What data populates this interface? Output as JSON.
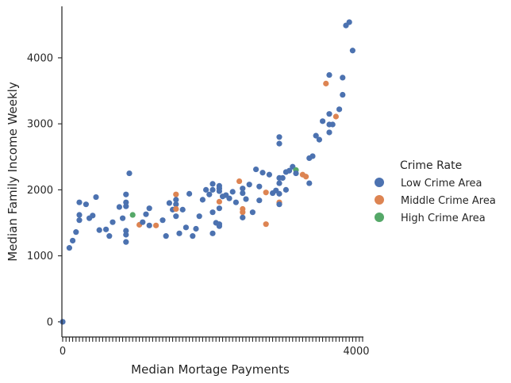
{
  "chart_data": {
    "type": "scatter",
    "ylabel": "Median Family Income Weekly",
    "xlabel": "Median Mortage Payments",
    "yticks": [
      0,
      1000,
      2000,
      3000,
      4000
    ],
    "ylim": [
      -230,
      4780
    ],
    "x_category_count": 121,
    "x_first_tick_label": "0",
    "x_last_tick_label": "4000",
    "legend": {
      "title": "Crime Rate",
      "entries": [
        {
          "key": "low",
          "label": "Low Crime Area",
          "color": "#4c72b0"
        },
        {
          "key": "middle",
          "label": "Middle Crime Area",
          "color": "#dd8452"
        },
        {
          "key": "high",
          "label": "High Crime Area",
          "color": "#55a868"
        }
      ]
    },
    "points": [
      {
        "i": 0,
        "y": 0,
        "c": "low"
      },
      {
        "i": 2,
        "y": 1120,
        "c": "low"
      },
      {
        "i": 3,
        "y": 1230,
        "c": "low"
      },
      {
        "i": 4,
        "y": 1360,
        "c": "low"
      },
      {
        "i": 5,
        "y": 1810,
        "c": "low"
      },
      {
        "i": 5,
        "y": 1620,
        "c": "low"
      },
      {
        "i": 5,
        "y": 1540,
        "c": "low"
      },
      {
        "i": 7,
        "y": 1780,
        "c": "low"
      },
      {
        "i": 8,
        "y": 1570,
        "c": "low"
      },
      {
        "i": 9,
        "y": 1610,
        "c": "low"
      },
      {
        "i": 10,
        "y": 1890,
        "c": "low"
      },
      {
        "i": 11,
        "y": 1390,
        "c": "low"
      },
      {
        "i": 13,
        "y": 1400,
        "c": "low"
      },
      {
        "i": 14,
        "y": 1300,
        "c": "low"
      },
      {
        "i": 15,
        "y": 1510,
        "c": "low"
      },
      {
        "i": 17,
        "y": 1740,
        "c": "low"
      },
      {
        "i": 18,
        "y": 1570,
        "c": "low"
      },
      {
        "i": 19,
        "y": 1930,
        "c": "low"
      },
      {
        "i": 19,
        "y": 1810,
        "c": "low"
      },
      {
        "i": 19,
        "y": 1750,
        "c": "low"
      },
      {
        "i": 19,
        "y": 1380,
        "c": "low"
      },
      {
        "i": 19,
        "y": 1320,
        "c": "low"
      },
      {
        "i": 19,
        "y": 1210,
        "c": "low"
      },
      {
        "i": 20,
        "y": 2250,
        "c": "low"
      },
      {
        "i": 21,
        "y": 1620,
        "c": "high"
      },
      {
        "i": 23,
        "y": 1470,
        "c": "middle"
      },
      {
        "i": 24,
        "y": 1510,
        "c": "low"
      },
      {
        "i": 25,
        "y": 1630,
        "c": "low"
      },
      {
        "i": 26,
        "y": 1720,
        "c": "low"
      },
      {
        "i": 26,
        "y": 1460,
        "c": "low"
      },
      {
        "i": 28,
        "y": 1460,
        "c": "middle"
      },
      {
        "i": 30,
        "y": 1540,
        "c": "low"
      },
      {
        "i": 31,
        "y": 1300,
        "c": "low"
      },
      {
        "i": 32,
        "y": 1800,
        "c": "low"
      },
      {
        "i": 33,
        "y": 1700,
        "c": "low"
      },
      {
        "i": 34,
        "y": 1930,
        "c": "middle"
      },
      {
        "i": 34,
        "y": 1850,
        "c": "low"
      },
      {
        "i": 34,
        "y": 1780,
        "c": "low"
      },
      {
        "i": 34,
        "y": 1710,
        "c": "middle"
      },
      {
        "i": 34,
        "y": 1600,
        "c": "low"
      },
      {
        "i": 35,
        "y": 1340,
        "c": "low"
      },
      {
        "i": 36,
        "y": 1700,
        "c": "low"
      },
      {
        "i": 37,
        "y": 1430,
        "c": "low"
      },
      {
        "i": 38,
        "y": 1940,
        "c": "low"
      },
      {
        "i": 39,
        "y": 1300,
        "c": "low"
      },
      {
        "i": 40,
        "y": 1410,
        "c": "low"
      },
      {
        "i": 41,
        "y": 1600,
        "c": "low"
      },
      {
        "i": 42,
        "y": 1850,
        "c": "low"
      },
      {
        "i": 43,
        "y": 2000,
        "c": "low"
      },
      {
        "i": 44,
        "y": 1930,
        "c": "low"
      },
      {
        "i": 45,
        "y": 2090,
        "c": "low"
      },
      {
        "i": 45,
        "y": 2000,
        "c": "low"
      },
      {
        "i": 45,
        "y": 1660,
        "c": "low"
      },
      {
        "i": 45,
        "y": 1340,
        "c": "low"
      },
      {
        "i": 46,
        "y": 1500,
        "c": "low"
      },
      {
        "i": 47,
        "y": 2060,
        "c": "low"
      },
      {
        "i": 47,
        "y": 2020,
        "c": "low"
      },
      {
        "i": 47,
        "y": 1980,
        "c": "low"
      },
      {
        "i": 47,
        "y": 1820,
        "c": "middle"
      },
      {
        "i": 47,
        "y": 1720,
        "c": "low"
      },
      {
        "i": 47,
        "y": 1480,
        "c": "low"
      },
      {
        "i": 47,
        "y": 1450,
        "c": "low"
      },
      {
        "i": 48,
        "y": 1900,
        "c": "low"
      },
      {
        "i": 49,
        "y": 1920,
        "c": "low"
      },
      {
        "i": 50,
        "y": 1870,
        "c": "low"
      },
      {
        "i": 51,
        "y": 1970,
        "c": "low"
      },
      {
        "i": 52,
        "y": 1810,
        "c": "low"
      },
      {
        "i": 53,
        "y": 2130,
        "c": "middle"
      },
      {
        "i": 54,
        "y": 2020,
        "c": "low"
      },
      {
        "i": 54,
        "y": 1950,
        "c": "low"
      },
      {
        "i": 54,
        "y": 1710,
        "c": "middle"
      },
      {
        "i": 54,
        "y": 1660,
        "c": "middle"
      },
      {
        "i": 54,
        "y": 1580,
        "c": "low"
      },
      {
        "i": 55,
        "y": 1860,
        "c": "low"
      },
      {
        "i": 56,
        "y": 2080,
        "c": "low"
      },
      {
        "i": 57,
        "y": 1660,
        "c": "low"
      },
      {
        "i": 58,
        "y": 2310,
        "c": "low"
      },
      {
        "i": 59,
        "y": 2050,
        "c": "low"
      },
      {
        "i": 59,
        "y": 1840,
        "c": "low"
      },
      {
        "i": 60,
        "y": 2260,
        "c": "low"
      },
      {
        "i": 61,
        "y": 1960,
        "c": "middle"
      },
      {
        "i": 61,
        "y": 1480,
        "c": "middle"
      },
      {
        "i": 62,
        "y": 2230,
        "c": "low"
      },
      {
        "i": 63,
        "y": 1950,
        "c": "low"
      },
      {
        "i": 64,
        "y": 1990,
        "c": "low"
      },
      {
        "i": 65,
        "y": 2800,
        "c": "low"
      },
      {
        "i": 65,
        "y": 2700,
        "c": "low"
      },
      {
        "i": 65,
        "y": 2180,
        "c": "low"
      },
      {
        "i": 65,
        "y": 2100,
        "c": "low"
      },
      {
        "i": 65,
        "y": 1940,
        "c": "low"
      },
      {
        "i": 65,
        "y": 1810,
        "c": "middle"
      },
      {
        "i": 65,
        "y": 1780,
        "c": "low"
      },
      {
        "i": 66,
        "y": 2180,
        "c": "low"
      },
      {
        "i": 67,
        "y": 2000,
        "c": "low"
      },
      {
        "i": 67,
        "y": 2270,
        "c": "low"
      },
      {
        "i": 68,
        "y": 2290,
        "c": "low"
      },
      {
        "i": 69,
        "y": 2350,
        "c": "low"
      },
      {
        "i": 70,
        "y": 2300,
        "c": "high"
      },
      {
        "i": 70,
        "y": 2250,
        "c": "low"
      },
      {
        "i": 72,
        "y": 2230,
        "c": "middle"
      },
      {
        "i": 73,
        "y": 2200,
        "c": "middle"
      },
      {
        "i": 74,
        "y": 2100,
        "c": "low"
      },
      {
        "i": 74,
        "y": 2480,
        "c": "low"
      },
      {
        "i": 75,
        "y": 2510,
        "c": "low"
      },
      {
        "i": 76,
        "y": 2820,
        "c": "low"
      },
      {
        "i": 77,
        "y": 2760,
        "c": "low"
      },
      {
        "i": 78,
        "y": 3040,
        "c": "low"
      },
      {
        "i": 79,
        "y": 3610,
        "c": "middle"
      },
      {
        "i": 80,
        "y": 3740,
        "c": "low"
      },
      {
        "i": 80,
        "y": 3150,
        "c": "low"
      },
      {
        "i": 80,
        "y": 2990,
        "c": "low"
      },
      {
        "i": 80,
        "y": 2870,
        "c": "low"
      },
      {
        "i": 81,
        "y": 2990,
        "c": "low"
      },
      {
        "i": 82,
        "y": 3110,
        "c": "middle"
      },
      {
        "i": 83,
        "y": 3220,
        "c": "low"
      },
      {
        "i": 84,
        "y": 3700,
        "c": "low"
      },
      {
        "i": 84,
        "y": 3440,
        "c": "low"
      },
      {
        "i": 85,
        "y": 4490,
        "c": "low"
      },
      {
        "i": 86,
        "y": 4540,
        "c": "low"
      },
      {
        "i": 87,
        "y": 4110,
        "c": "low"
      }
    ]
  }
}
